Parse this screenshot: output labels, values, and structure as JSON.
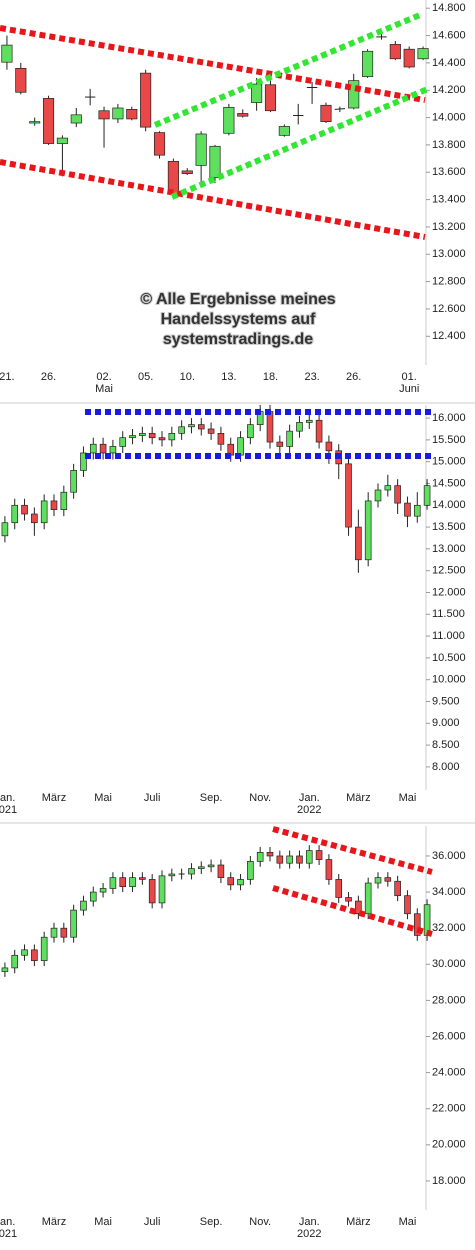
{
  "chart_data": [
    {
      "type": "candlestick",
      "up_color": "#5ee05e",
      "down_color": "#e84848",
      "annotation": [
        "© Alle Ergebnisse meines",
        "Handelssystems auf",
        "systemstradings.de"
      ],
      "categories": [
        "21.",
        null,
        null,
        "26.",
        null,
        null,
        null,
        "02.\nMai",
        null,
        null,
        "05.",
        null,
        null,
        "10.",
        null,
        null,
        "13.",
        null,
        null,
        "18.",
        null,
        null,
        "23.",
        null,
        null,
        "26.",
        null,
        null,
        null,
        "01.\nJuni",
        null
      ],
      "open": [
        14405,
        14360,
        13960,
        14140,
        13810,
        13960,
        14150,
        14050,
        13990,
        14060,
        14325,
        13890,
        13680,
        13610,
        13650,
        13560,
        13885,
        14030,
        14110,
        14240,
        13870,
        14015,
        14220,
        14090,
        14060,
        14070,
        14300,
        14590,
        14535,
        14500,
        14430
      ],
      "close": [
        14530,
        14185,
        13970,
        13810,
        13850,
        14020,
        14150,
        13990,
        14070,
        13990,
        13930,
        13725,
        13445,
        13590,
        13880,
        13790,
        14075,
        14010,
        14245,
        14050,
        13935,
        14015,
        14220,
        13970,
        14065,
        14270,
        14485,
        14590,
        14430,
        14370,
        14505
      ],
      "high": [
        14600,
        14400,
        14000,
        14160,
        13870,
        14070,
        14210,
        14080,
        14100,
        14080,
        14350,
        13900,
        13700,
        13630,
        13900,
        13800,
        14100,
        14060,
        14290,
        14270,
        13950,
        14100,
        14260,
        14110,
        14080,
        14320,
        14500,
        14610,
        14560,
        14520,
        14520
      ],
      "low": [
        14350,
        14170,
        13940,
        13800,
        13570,
        13930,
        14090,
        13780,
        13960,
        13980,
        13900,
        13700,
        13400,
        13580,
        13500,
        13520,
        13870,
        14000,
        14050,
        14040,
        13860,
        13950,
        14100,
        13960,
        14040,
        14060,
        14290,
        14570,
        14420,
        14360,
        14420
      ],
      "ylim": [
        12190,
        14860
      ],
      "yticks": [
        {
          "value": 12400,
          "label": "12.400"
        },
        {
          "value": 12600,
          "label": "12.600"
        },
        {
          "value": 12800,
          "label": "12.800"
        },
        {
          "value": 13000,
          "label": "13.000"
        },
        {
          "value": 13200,
          "label": "13.200"
        },
        {
          "value": 13400,
          "label": "13.400"
        },
        {
          "value": 13600,
          "label": "13.600"
        },
        {
          "value": 13800,
          "label": "13.800"
        },
        {
          "value": 14000,
          "label": "14.000"
        },
        {
          "value": 14200,
          "label": "14.200"
        },
        {
          "value": 14400,
          "label": "14.400"
        },
        {
          "value": 14600,
          "label": "14.600"
        },
        {
          "value": 14800,
          "label": "14.800"
        }
      ]
    },
    {
      "type": "candlestick",
      "up_color": "#5ee05e",
      "down_color": "#e84848",
      "categories": [
        "Jan.\n2021",
        null,
        null,
        null,
        null,
        "März",
        null,
        null,
        null,
        null,
        "Mai",
        null,
        null,
        null,
        null,
        "Juli",
        null,
        null,
        null,
        null,
        null,
        "Sep.",
        null,
        null,
        null,
        null,
        "Nov.",
        null,
        null,
        null,
        null,
        "Jan.\n2022",
        null,
        null,
        null,
        null,
        "März",
        null,
        null,
        null,
        null,
        "Mai",
        null,
        null
      ],
      "open": [
        13300,
        13600,
        14000,
        13800,
        13600,
        14100,
        13900,
        14300,
        14800,
        15200,
        15400,
        15200,
        15350,
        15550,
        15600,
        15650,
        15550,
        15500,
        15650,
        15800,
        15850,
        15750,
        15650,
        15400,
        15150,
        15550,
        15850,
        16150,
        15450,
        15350,
        15700,
        15900,
        15950,
        15450,
        15250,
        14950,
        13500,
        12750,
        14100,
        14350,
        14450,
        14050,
        13750,
        14000
      ],
      "close": [
        13600,
        14000,
        13800,
        13600,
        14100,
        13900,
        14300,
        14800,
        15200,
        15400,
        15200,
        15350,
        15550,
        15600,
        15650,
        15550,
        15500,
        15650,
        15800,
        15850,
        15750,
        15650,
        15400,
        15150,
        15550,
        15850,
        16150,
        15450,
        15350,
        15700,
        15900,
        15950,
        15450,
        15250,
        14950,
        13500,
        12750,
        14100,
        14350,
        14450,
        14050,
        13750,
        14000,
        14450
      ],
      "high": [
        13750,
        14150,
        14150,
        13950,
        14250,
        14250,
        14450,
        14950,
        15350,
        15550,
        15550,
        15500,
        15700,
        15750,
        15800,
        15800,
        15700,
        15800,
        15950,
        16000,
        16000,
        15900,
        15800,
        15550,
        15700,
        16000,
        16300,
        16300,
        15600,
        15850,
        16050,
        16100,
        16100,
        15600,
        15400,
        15100,
        13900,
        14300,
        14500,
        14700,
        14600,
        14200,
        14300,
        14600
      ],
      "low": [
        13150,
        13450,
        13650,
        13300,
        13450,
        13750,
        13750,
        14150,
        14650,
        15050,
        15050,
        15050,
        15200,
        15400,
        15450,
        15400,
        15350,
        15350,
        15500,
        15650,
        15600,
        15500,
        15250,
        15000,
        15000,
        15400,
        15700,
        15300,
        15100,
        15200,
        15550,
        15750,
        15300,
        14950,
        14600,
        13300,
        12450,
        12600,
        13950,
        14200,
        13800,
        13500,
        13600,
        13900
      ],
      "ylim": [
        7470,
        16300
      ],
      "yticks": [
        {
          "value": 8000,
          "label": "8.000"
        },
        {
          "value": 8500,
          "label": "8.500"
        },
        {
          "value": 9000,
          "label": "9.000"
        },
        {
          "value": 9500,
          "label": "9.500"
        },
        {
          "value": 10000,
          "label": "10.000"
        },
        {
          "value": 10500,
          "label": "10.500"
        },
        {
          "value": 11000,
          "label": "11.000"
        },
        {
          "value": 11500,
          "label": "11.500"
        },
        {
          "value": 12000,
          "label": "12.000"
        },
        {
          "value": 12500,
          "label": "12.500"
        },
        {
          "value": 13000,
          "label": "13.000"
        },
        {
          "value": 13500,
          "label": "13.500"
        },
        {
          "value": 14000,
          "label": "14.000"
        },
        {
          "value": 14500,
          "label": "14.500"
        },
        {
          "value": 15000,
          "label": "15.000"
        },
        {
          "value": 15500,
          "label": "15.500"
        },
        {
          "value": 16000,
          "label": "16.000"
        }
      ]
    },
    {
      "type": "candlestick",
      "up_color": "#5ee05e",
      "down_color": "#e84848",
      "categories": [
        "Jan.\n2021",
        null,
        null,
        null,
        null,
        "März",
        null,
        null,
        null,
        null,
        "Mai",
        null,
        null,
        null,
        null,
        "Juli",
        null,
        null,
        null,
        null,
        null,
        "Sep.",
        null,
        null,
        null,
        null,
        "Nov.",
        null,
        null,
        null,
        null,
        "Jan.\n2022",
        null,
        null,
        null,
        null,
        "März",
        null,
        null,
        null,
        null,
        "Mai",
        null,
        null
      ],
      "open": [
        29600,
        29800,
        30500,
        30800,
        30200,
        31500,
        32000,
        31500,
        33000,
        33500,
        34000,
        34200,
        34800,
        34300,
        34800,
        34700,
        33400,
        34900,
        35000,
        35000,
        35300,
        35400,
        35500,
        34800,
        34400,
        34700,
        35700,
        36200,
        36000,
        35600,
        36000,
        35600,
        36300,
        35800,
        34700,
        33700,
        33500,
        32800,
        34500,
        34800,
        34600,
        33800,
        32800,
        31600
      ],
      "close": [
        29800,
        30500,
        30800,
        30200,
        31500,
        32000,
        31500,
        33000,
        33500,
        34000,
        34200,
        34800,
        34300,
        34800,
        34700,
        33400,
        34900,
        35000,
        35000,
        35300,
        35400,
        35500,
        34800,
        34400,
        34700,
        35700,
        36200,
        36000,
        35600,
        36000,
        35600,
        36300,
        35800,
        34700,
        33700,
        33500,
        32800,
        34500,
        34800,
        34600,
        33800,
        32800,
        31600,
        33300
      ],
      "high": [
        30100,
        30800,
        31100,
        31100,
        31800,
        32300,
        32300,
        33300,
        33800,
        34300,
        34500,
        35100,
        35100,
        35100,
        35100,
        35000,
        35200,
        35300,
        35300,
        35600,
        35700,
        35800,
        35800,
        35100,
        35000,
        36000,
        36500,
        36500,
        36300,
        36300,
        36300,
        36600,
        36600,
        36100,
        35000,
        34000,
        33800,
        34800,
        35100,
        35100,
        34900,
        34100,
        33100,
        33600
      ],
      "low": [
        29300,
        29500,
        30200,
        29900,
        29900,
        31200,
        31200,
        31200,
        32700,
        33200,
        33700,
        33900,
        34000,
        34000,
        34400,
        33100,
        33100,
        34600,
        34700,
        34700,
        35000,
        35100,
        34500,
        34100,
        34100,
        34400,
        35400,
        35700,
        35300,
        35300,
        35300,
        35300,
        35500,
        34400,
        33400,
        33200,
        32500,
        32500,
        34200,
        34300,
        33500,
        32500,
        31300,
        31300
      ],
      "ylim": [
        16390,
        37660
      ],
      "yticks": [
        {
          "value": 18000,
          "label": "18.000"
        },
        {
          "value": 20000,
          "label": "20.000"
        },
        {
          "value": 22000,
          "label": "22.000"
        },
        {
          "value": 24000,
          "label": "24.000"
        },
        {
          "value": 26000,
          "label": "26.000"
        },
        {
          "value": 28000,
          "label": "28.000"
        },
        {
          "value": 30000,
          "label": "30.000"
        },
        {
          "value": 32000,
          "label": "32.000"
        },
        {
          "value": 34000,
          "label": "34.000"
        },
        {
          "value": 36000,
          "label": "36.000"
        }
      ]
    }
  ]
}
